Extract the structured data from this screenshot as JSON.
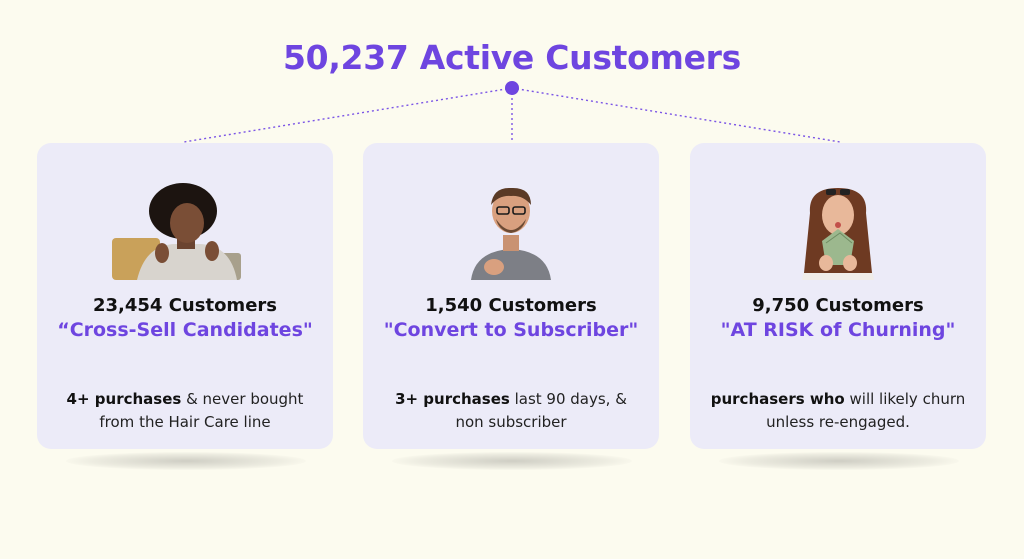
{
  "title": "50,237 Active Customers",
  "accent_color": "#6e45e0",
  "cards": [
    {
      "photo_icon": "smiling-woman-with-shopping-bags-photo",
      "count": "23,454 Customers",
      "segment": "“Cross-Sell Candidates\"",
      "desc_bold": "4+ purchases",
      "desc_rest": " & never bought from the Hair Care line"
    },
    {
      "photo_icon": "smiling-man-with-glasses-photo",
      "count": "1,540 Customers",
      "segment": "\"Convert to Subscriber\"",
      "desc_bold": "3+ purchases",
      "desc_rest": " last 90 days, & non subscriber"
    },
    {
      "photo_icon": "woman-holding-cash-photo",
      "count": "9,750 Customers",
      "segment": "\"AT RISK of Churning\"",
      "desc_bold": "purchasers who",
      "desc_rest": " will likely churn unless re-engaged."
    }
  ]
}
